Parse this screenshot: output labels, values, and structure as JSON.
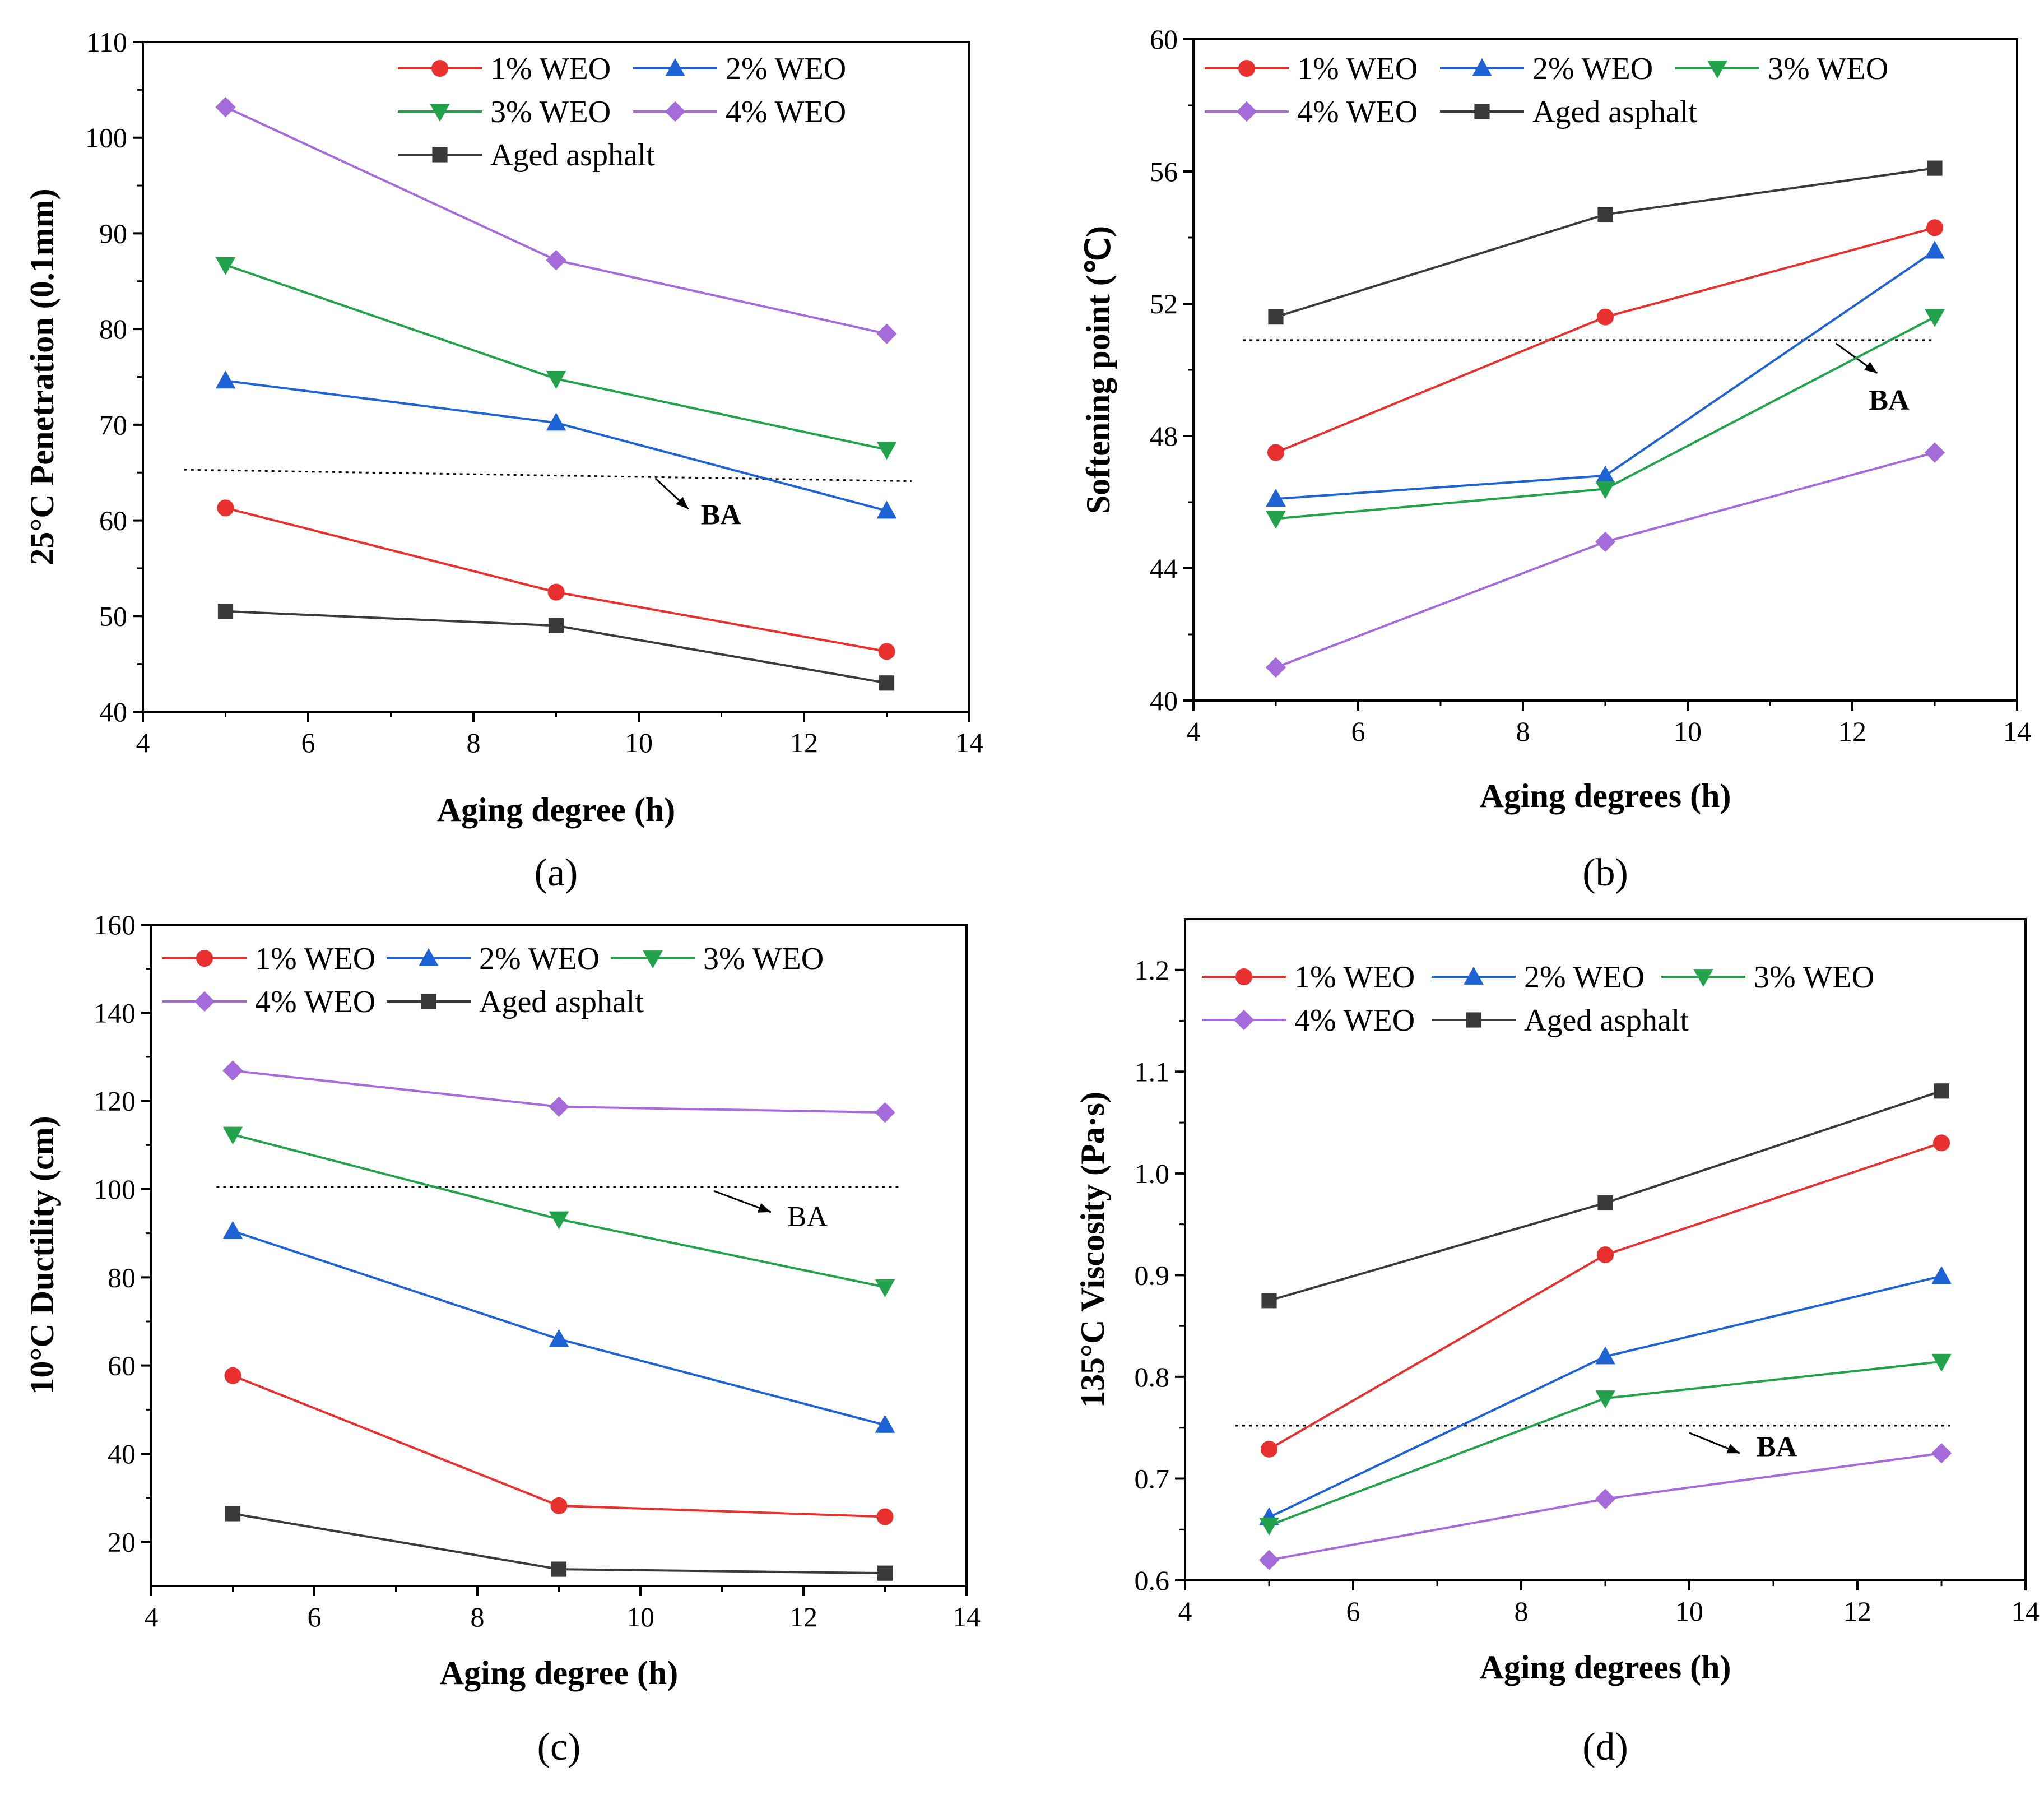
{
  "figure": {
    "series_styles": [
      {
        "name": "1% WEO",
        "color": "#e8312f",
        "marker": "circle"
      },
      {
        "name": "2% WEO",
        "color": "#1d63d6",
        "marker": "triangle-up"
      },
      {
        "name": "3% WEO",
        "color": "#22a24a",
        "marker": "triangle-down"
      },
      {
        "name": "4% WEO",
        "color": "#a66bdb",
        "marker": "diamond"
      },
      {
        "name": "Aged asphalt",
        "color": "#3a3a3a",
        "marker": "square"
      }
    ],
    "reference_line_color": "#000000"
  },
  "chart_data": [
    {
      "type": "line",
      "panel_label": "(a)",
      "title": "",
      "xlabel": "Aging degree (h)",
      "ylabel": "25°C Penetration (0.1mm)",
      "xlim": [
        4,
        14
      ],
      "ylim": [
        40,
        110
      ],
      "xticks": [
        4,
        6,
        8,
        10,
        12,
        14
      ],
      "yticks": [
        40,
        50,
        60,
        70,
        80,
        90,
        100,
        110
      ],
      "x": [
        5,
        9,
        13
      ],
      "series": [
        {
          "name": "1% WEO",
          "values": [
            61.3,
            52.5,
            46.3
          ]
        },
        {
          "name": "2% WEO",
          "values": [
            74.6,
            70.2,
            61.0
          ]
        },
        {
          "name": "3% WEO",
          "values": [
            86.7,
            74.8,
            67.4
          ]
        },
        {
          "name": "4% WEO",
          "values": [
            103.2,
            87.2,
            79.5
          ]
        },
        {
          "name": "Aged asphalt",
          "values": [
            50.5,
            49.0,
            43.0
          ]
        }
      ],
      "legend_rows": [
        [
          "1% WEO",
          "2% WEO"
        ],
        [
          "3% WEO",
          "4% WEO"
        ],
        [
          "Aged asphalt"
        ]
      ],
      "reference_line": {
        "label": "BA",
        "bold": true,
        "x_start": 4.5,
        "x_end": 13.3,
        "y_start": 65.3,
        "y_end": 64.1,
        "arrow_from": [
          10.2,
          64.4
        ],
        "arrow_to": [
          10.6,
          61.2
        ],
        "label_at": [
          10.75,
          59.6
        ]
      }
    },
    {
      "type": "line",
      "panel_label": "(b)",
      "title": "",
      "xlabel": "Aging degrees (h)",
      "ylabel": "Softening point (℃)",
      "xlim": [
        4,
        14
      ],
      "ylim": [
        40,
        60
      ],
      "xticks": [
        4,
        6,
        8,
        10,
        12,
        14
      ],
      "yticks": [
        40,
        44,
        48,
        52,
        56,
        60
      ],
      "x": [
        5,
        9,
        13
      ],
      "series": [
        {
          "name": "1% WEO",
          "values": [
            47.5,
            51.6,
            54.3
          ]
        },
        {
          "name": "2% WEO",
          "values": [
            46.1,
            46.8,
            53.6
          ]
        },
        {
          "name": "3% WEO",
          "values": [
            45.5,
            46.4,
            51.6
          ]
        },
        {
          "name": "4% WEO",
          "values": [
            41.0,
            44.8,
            47.5
          ]
        },
        {
          "name": "Aged asphalt",
          "values": [
            51.6,
            54.7,
            56.1
          ]
        }
      ],
      "legend_rows": [
        [
          "1% WEO",
          "2% WEO",
          "3% WEO"
        ],
        [
          "4% WEO",
          "Aged asphalt"
        ]
      ],
      "reference_line": {
        "label": "BA",
        "bold": true,
        "x_start": 4.6,
        "x_end": 13.0,
        "y_start": 50.9,
        "y_end": 50.9,
        "arrow_from": [
          11.8,
          50.8
        ],
        "arrow_to": [
          12.3,
          49.9
        ],
        "label_at": [
          12.2,
          48.8
        ]
      }
    },
    {
      "type": "line",
      "panel_label": "(c)",
      "title": "",
      "xlabel": "Aging degree (h)",
      "ylabel": "10°C Ductility (cm)",
      "xlim": [
        4,
        14
      ],
      "ylim": [
        10,
        160
      ],
      "xticks": [
        4,
        6,
        8,
        10,
        12,
        14
      ],
      "yticks": [
        20,
        40,
        60,
        80,
        100,
        120,
        140,
        160
      ],
      "x": [
        5,
        9,
        13
      ],
      "series": [
        {
          "name": "1% WEO",
          "values": [
            57.7,
            28.2,
            25.7
          ]
        },
        {
          "name": "2% WEO",
          "values": [
            90.5,
            66.0,
            46.5
          ]
        },
        {
          "name": "3% WEO",
          "values": [
            112.4,
            93.2,
            77.8
          ]
        },
        {
          "name": "4% WEO",
          "values": [
            126.9,
            118.7,
            117.4
          ]
        },
        {
          "name": "Aged asphalt",
          "values": [
            26.4,
            13.8,
            12.9
          ]
        }
      ],
      "legend_rows": [
        [
          "1% WEO",
          "2% WEO",
          "3% WEO"
        ],
        [
          "4% WEO",
          "Aged asphalt"
        ]
      ],
      "reference_line": {
        "label": "BA",
        "bold": false,
        "x_start": 4.8,
        "x_end": 13.2,
        "y_start": 100.5,
        "y_end": 100.5,
        "arrow_from": [
          10.9,
          99.6
        ],
        "arrow_to": [
          11.6,
          94.8
        ],
        "label_at": [
          11.8,
          91.6
        ]
      }
    },
    {
      "type": "line",
      "panel_label": "(d)",
      "title": "",
      "xlabel": "Aging degrees (h)",
      "ylabel": "135°C Viscosity (Pa·s)",
      "xlim": [
        4,
        14
      ],
      "ylim": [
        0.6,
        1.25
      ],
      "xticks": [
        4,
        6,
        8,
        10,
        12,
        14
      ],
      "yticks": [
        0.6,
        0.7,
        0.8,
        0.9,
        1.0,
        1.1,
        1.2
      ],
      "ytick_decimals": 1,
      "x": [
        5,
        9,
        13
      ],
      "series": [
        {
          "name": "1% WEO",
          "values": [
            0.729,
            0.92,
            1.03
          ]
        },
        {
          "name": "2% WEO",
          "values": [
            0.662,
            0.82,
            0.899
          ]
        },
        {
          "name": "3% WEO",
          "values": [
            0.654,
            0.779,
            0.815
          ]
        },
        {
          "name": "4% WEO",
          "values": [
            0.62,
            0.68,
            0.725
          ]
        },
        {
          "name": "Aged asphalt",
          "values": [
            0.875,
            0.971,
            1.081
          ]
        }
      ],
      "legend_rows": [
        [
          "1% WEO",
          "2% WEO",
          "3% WEO"
        ],
        [
          "4% WEO",
          "Aged asphalt"
        ]
      ],
      "reference_line": {
        "label": "BA",
        "bold": true,
        "x_start": 4.6,
        "x_end": 13.1,
        "y_start": 0.752,
        "y_end": 0.752,
        "arrow_from": [
          10.0,
          0.745
        ],
        "arrow_to": [
          10.6,
          0.725
        ],
        "label_at": [
          10.8,
          0.722
        ]
      }
    }
  ]
}
